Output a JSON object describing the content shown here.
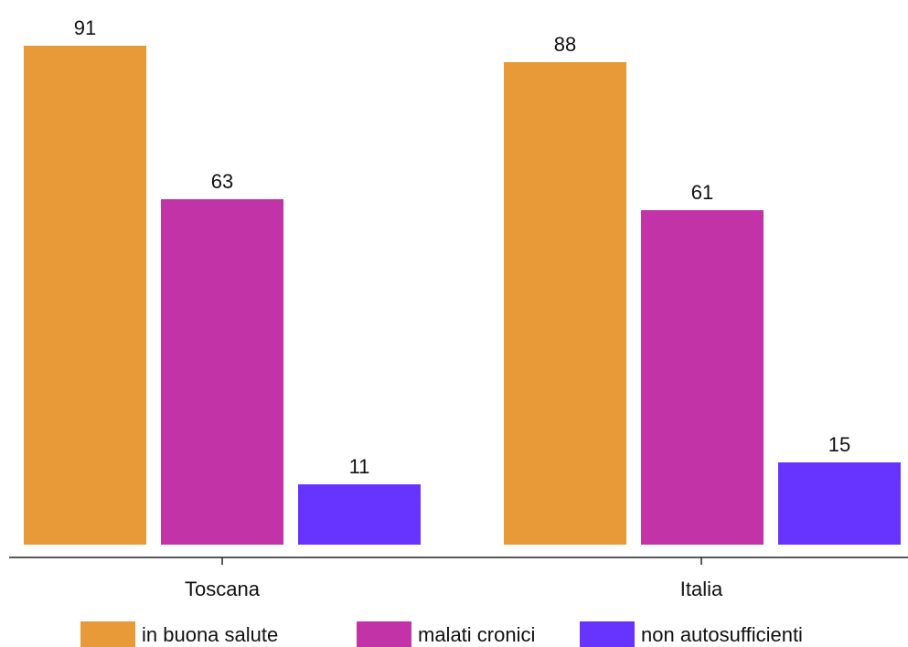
{
  "chart_data": {
    "type": "bar",
    "categories": [
      "Toscana",
      "Italia"
    ],
    "series": [
      {
        "name": "in buona salute",
        "values": [
          91,
          88
        ],
        "color": "#E89A38"
      },
      {
        "name": "malati cronici",
        "values": [
          63,
          61
        ],
        "color": "#C233A8"
      },
      {
        "name": "non autosufficienti",
        "values": [
          11,
          15
        ],
        "color": "#6633FF"
      }
    ],
    "ylim": [
      0,
      100
    ],
    "grid": false,
    "legend": "bottom",
    "show_value_labels": true
  }
}
